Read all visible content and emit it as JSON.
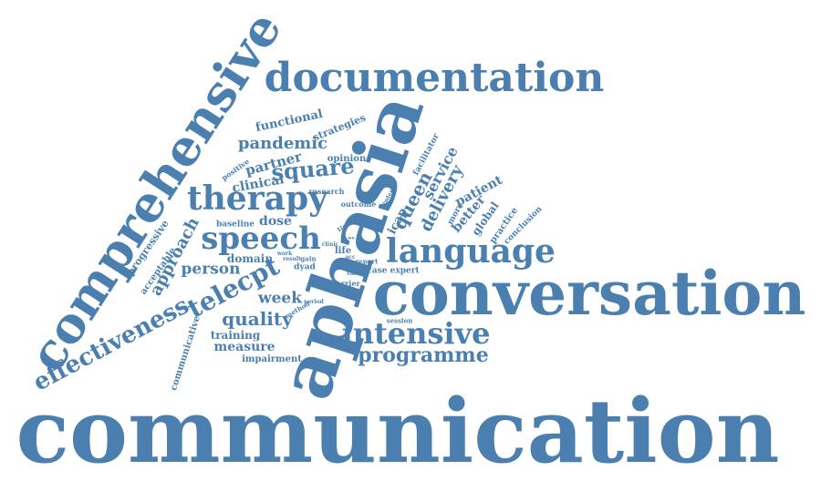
{
  "color": "#4a7fb0",
  "words": [
    "communication",
    "conversation",
    "aphasia",
    "comprehensive",
    "documentation",
    "language",
    "intensive",
    "effectiveness",
    "therapy",
    "speech",
    "telecpt",
    "programme",
    "quality",
    "square",
    "pandemic",
    "person",
    "approach",
    "queen",
    "delivery",
    "service",
    "week",
    "measure",
    "clinical",
    "partner",
    "functional",
    "strategies",
    "opinion",
    "positive",
    "training",
    "impairment",
    "dose",
    "domain",
    "progressive",
    "acceptable",
    "communicative",
    "baseline",
    "patient",
    "better",
    "global",
    "practice",
    "conclusion",
    "facilitator",
    "icap",
    "more",
    "research",
    "outcome",
    "index",
    "time",
    "life",
    "clinic",
    "dyad",
    "work",
    "result",
    "gain",
    "method",
    "barrier",
    "video",
    "report",
    "case expert",
    "client",
    "session",
    "period",
    "acc",
    "we"
  ]
}
